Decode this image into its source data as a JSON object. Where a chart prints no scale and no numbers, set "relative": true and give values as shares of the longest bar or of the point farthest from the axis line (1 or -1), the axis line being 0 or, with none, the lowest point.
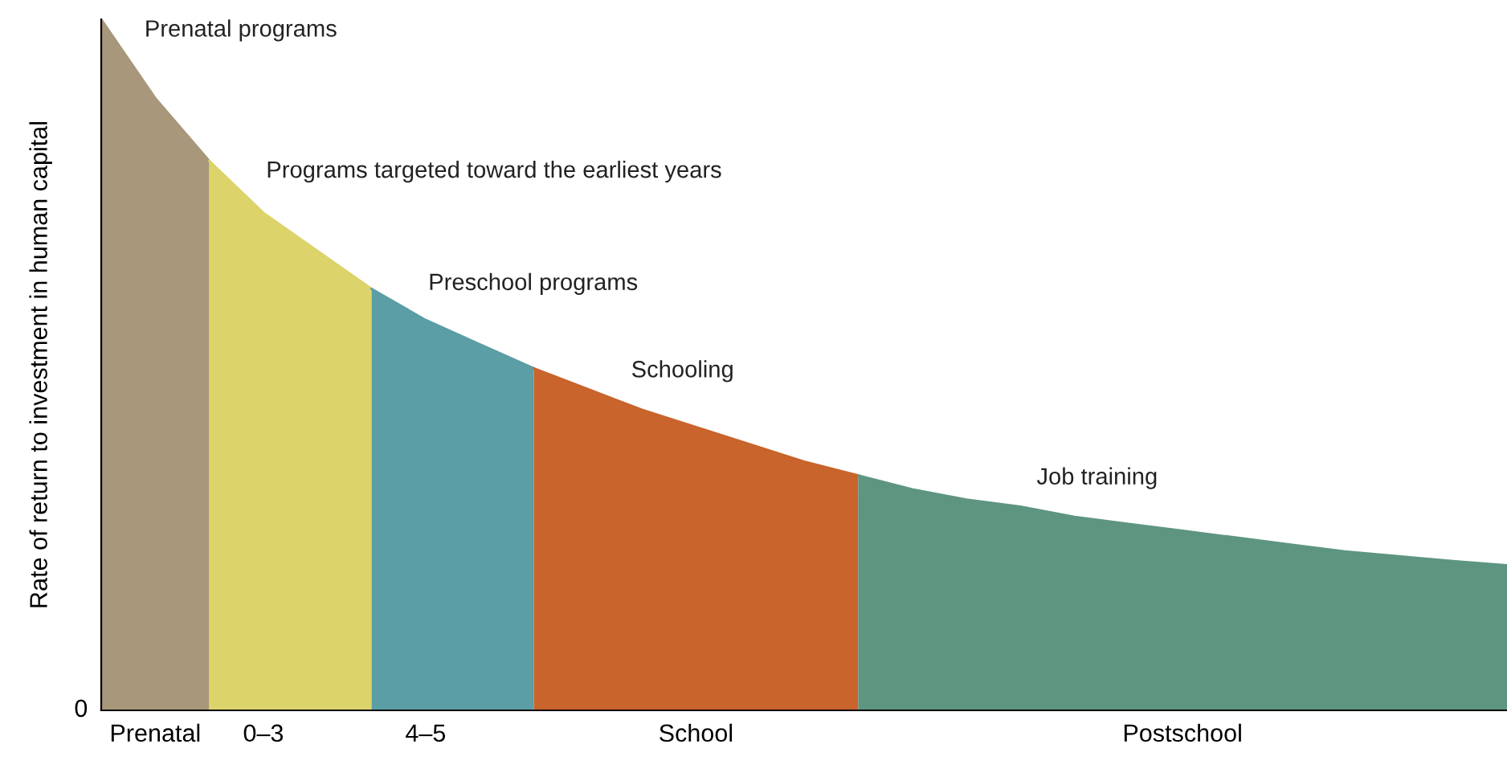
{
  "chart_data": {
    "type": "area",
    "relative": true,
    "ylabel": "Rate of return to investment in human capital",
    "annotations": [
      "0"
    ],
    "categories": [
      null,
      "Prenatal",
      null,
      "0–3",
      null,
      null,
      "4–5",
      null,
      null,
      null,
      null,
      "School",
      null,
      null,
      null,
      null,
      null,
      null,
      null,
      null,
      "Postschool",
      null,
      null,
      null,
      null,
      null,
      null
    ],
    "grid": false,
    "legend": false,
    "series": [
      {
        "name": "Prenatal programs",
        "color": "#a8977a",
        "values": [
          1,
          0.886,
          0.795,
          null,
          null,
          null,
          null,
          null,
          null,
          null,
          null,
          null,
          null,
          null,
          null,
          null,
          null,
          null,
          null,
          null,
          null,
          null,
          null,
          null,
          null,
          null,
          null
        ]
      },
      {
        "name": "Programs targeted toward the earliest years",
        "color": "#dcd36a",
        "values": [
          null,
          null,
          0.795,
          0.72,
          0.665,
          0.61,
          null,
          null,
          null,
          null,
          null,
          null,
          null,
          null,
          null,
          null,
          null,
          null,
          null,
          null,
          null,
          null,
          null,
          null,
          null,
          null,
          null
        ]
      },
      {
        "name": "Preschool programs",
        "color": "#5b9ea5",
        "values": [
          null,
          null,
          null,
          null,
          null,
          0.61,
          0.565,
          0.53,
          0.495,
          null,
          null,
          null,
          null,
          null,
          null,
          null,
          null,
          null,
          null,
          null,
          null,
          null,
          null,
          null,
          null,
          null,
          null
        ]
      },
      {
        "name": "Schooling",
        "color": "#c8642c",
        "values": [
          null,
          null,
          null,
          null,
          null,
          null,
          null,
          null,
          0.495,
          0.465,
          0.435,
          0.41,
          0.385,
          0.36,
          0.34,
          null,
          null,
          null,
          null,
          null,
          null,
          null,
          null,
          null,
          null,
          null,
          null
        ]
      },
      {
        "name": "Job training",
        "color": "#5e9580",
        "values": [
          null,
          null,
          null,
          null,
          null,
          null,
          null,
          null,
          null,
          null,
          null,
          null,
          null,
          null,
          0.34,
          0.32,
          0.305,
          0.295,
          0.28,
          0.27,
          0.26,
          0.25,
          0.24,
          0.23,
          0.223,
          0.216,
          0.21
        ]
      }
    ]
  }
}
